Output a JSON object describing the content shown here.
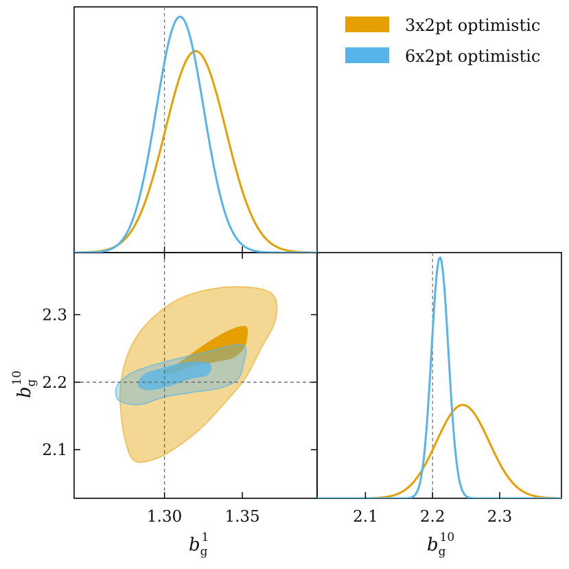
{
  "chart_data": {
    "type": "corner-plot",
    "colors": {
      "3x2pt": "#E69F00",
      "6x2pt": "#56B4E9"
    },
    "legend": {
      "placement": "top-right",
      "entries": [
        {
          "label": "3x2pt optimistic",
          "color": "#E69F00"
        },
        {
          "label": "6x2pt optimistic",
          "color": "#56B4E9"
        }
      ]
    },
    "parameters": {
      "b1": {
        "base": "b",
        "sub": "g",
        "sup": "1",
        "range": [
          1.242,
          1.398
        ],
        "ticks": [
          "1.30",
          "1.35"
        ],
        "fiducial": 1.3
      },
      "b10": {
        "base": "b",
        "sub": "g",
        "sup": "10",
        "range": [
          2.028,
          2.392
        ],
        "ticks": [
          "2.1",
          "2.2",
          "2.3"
        ],
        "fiducial": 2.2
      }
    },
    "panels": [
      {
        "kind": "1d",
        "param": "b1",
        "series": [
          {
            "name": "3x2pt optimistic",
            "mean": 1.32,
            "sigma": 0.0195,
            "peak": 0.82
          },
          {
            "name": "6x2pt optimistic",
            "mean": 1.31,
            "sigma": 0.0153,
            "peak": 0.96
          }
        ]
      },
      {
        "kind": "2d",
        "x": "b1",
        "y": "b10",
        "series": [
          {
            "name": "3x2pt optimistic",
            "outer": [
              [
                1.272,
                2.155
              ],
              [
                1.275,
                2.112
              ],
              [
                1.281,
                2.083
              ],
              [
                1.295,
                2.087
              ],
              [
                1.31,
                2.107
              ],
              [
                1.325,
                2.135
              ],
              [
                1.339,
                2.17
              ],
              [
                1.352,
                2.206
              ],
              [
                1.362,
                2.25
              ],
              [
                1.371,
                2.29
              ],
              [
                1.371,
                2.325
              ],
              [
                1.36,
                2.339
              ],
              [
                1.336,
                2.34
              ],
              [
                1.31,
                2.324
              ],
              [
                1.29,
                2.29
              ],
              [
                1.278,
                2.25
              ],
              [
                1.272,
                2.2
              ]
            ],
            "inner": [
              [
                1.299,
                2.215
              ],
              [
                1.31,
                2.23
              ],
              [
                1.322,
                2.25
              ],
              [
                1.334,
                2.268
              ],
              [
                1.346,
                2.281
              ],
              [
                1.353,
                2.281
              ],
              [
                1.352,
                2.255
              ],
              [
                1.345,
                2.237
              ],
              [
                1.333,
                2.23
              ],
              [
                1.32,
                2.225
              ],
              [
                1.305,
                2.213
              ]
            ]
          },
          {
            "name": "6x2pt optimistic",
            "outer": [
              [
                1.269,
                2.18
              ],
              [
                1.27,
                2.196
              ],
              [
                1.28,
                2.215
              ],
              [
                1.3,
                2.23
              ],
              [
                1.325,
                2.244
              ],
              [
                1.345,
                2.255
              ],
              [
                1.352,
                2.252
              ],
              [
                1.351,
                2.23
              ],
              [
                1.347,
                2.204
              ],
              [
                1.335,
                2.191
              ],
              [
                1.318,
                2.185
              ],
              [
                1.3,
                2.178
              ],
              [
                1.285,
                2.167
              ],
              [
                1.273,
                2.17
              ]
            ],
            "inner": [
              [
                1.283,
                2.195
              ],
              [
                1.287,
                2.212
              ],
              [
                1.3,
                2.222
              ],
              [
                1.315,
                2.23
              ],
              [
                1.329,
                2.228
              ],
              [
                1.328,
                2.211
              ],
              [
                1.317,
                2.205
              ],
              [
                1.303,
                2.194
              ],
              [
                1.29,
                2.188
              ]
            ]
          }
        ]
      },
      {
        "kind": "1d",
        "param": "b10",
        "series": [
          {
            "name": "3x2pt optimistic",
            "mean": 2.245,
            "sigma": 0.0392,
            "peak": 0.38
          },
          {
            "name": "6x2pt optimistic",
            "mean": 2.211,
            "sigma": 0.0127,
            "peak": 0.98
          }
        ]
      }
    ]
  }
}
